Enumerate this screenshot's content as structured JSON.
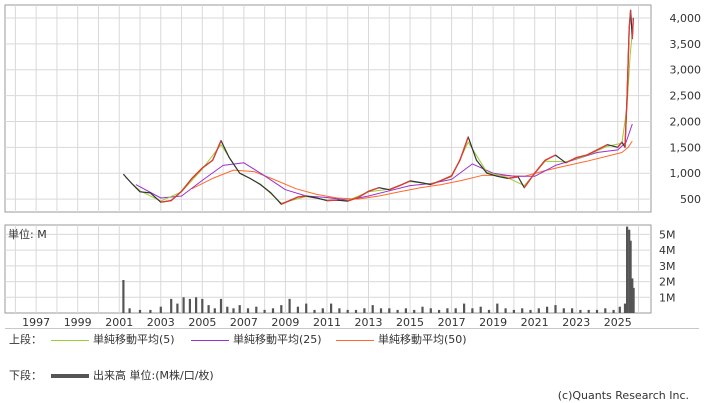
{
  "legend": {
    "upper_label": "上段：",
    "lower_label": "下段：",
    "ma5": "単純移動平均(5)",
    "ma25": "単純移動平均(25)",
    "ma50": "単純移動平均(50)",
    "volume": "出来高 単位:(M株/口/枚)"
  },
  "volume_unit_label": "単位: M",
  "credit": "(c)Quants Research Inc.",
  "colors": {
    "price_up": "#e53935",
    "price_down": "#333333",
    "ma5": "#9acd32",
    "ma25": "#9932cc",
    "ma50": "#ff6a2a",
    "volume": "#555555",
    "grid": "#d9d9d9"
  },
  "chart_data": [
    {
      "type": "line",
      "name": "price",
      "x_ticks": [
        "1997",
        "1999",
        "2001",
        "2003",
        "2005",
        "2007",
        "2009",
        "2011",
        "2013",
        "2015",
        "2017",
        "2019",
        "2021",
        "2023",
        "2025"
      ],
      "y_ticks": [
        "500",
        "1,000",
        "1,500",
        "2,000",
        "2,500",
        "3,000",
        "3,500",
        "4,000"
      ],
      "xlim": [
        1995.5,
        2026.6
      ],
      "ylim": [
        250,
        4250
      ],
      "series": [
        {
          "name": "price",
          "x": [
            2001.2,
            2001.6,
            2002.0,
            2002.5,
            2003.0,
            2003.5,
            2004.0,
            2004.5,
            2005.0,
            2005.5,
            2005.9,
            2006.3,
            2006.8,
            2007.3,
            2007.8,
            2008.3,
            2008.8,
            2009.2,
            2009.6,
            2010.0,
            2010.5,
            2011.0,
            2011.5,
            2012.0,
            2012.5,
            2013.0,
            2013.5,
            2014.0,
            2014.5,
            2015.0,
            2015.5,
            2016.0,
            2016.5,
            2017.0,
            2017.4,
            2017.8,
            2018.2,
            2018.7,
            2019.2,
            2019.7,
            2020.2,
            2020.5,
            2021.0,
            2021.5,
            2022.0,
            2022.5,
            2023.0,
            2023.5,
            2024.0,
            2024.5,
            2025.0,
            2025.2,
            2025.35,
            2025.45,
            2025.55,
            2025.62,
            2025.7,
            2025.75
          ],
          "y": [
            980,
            800,
            640,
            620,
            440,
            470,
            650,
            900,
            1100,
            1250,
            1630,
            1300,
            1000,
            900,
            780,
            620,
            400,
            470,
            540,
            560,
            520,
            470,
            480,
            460,
            530,
            650,
            720,
            680,
            760,
            850,
            820,
            780,
            860,
            950,
            1250,
            1700,
            1250,
            1000,
            940,
            900,
            930,
            720,
            1000,
            1250,
            1350,
            1200,
            1300,
            1350,
            1450,
            1550,
            1500,
            1600,
            1500,
            2500,
            3800,
            4150,
            3600,
            4000
          ]
        },
        {
          "name": "単純移動平均(5)",
          "x": [
            2001.3,
            2002.0,
            2003.0,
            2004.0,
            2005.0,
            2005.9,
            2006.8,
            2007.8,
            2008.8,
            2010.0,
            2011.0,
            2012.0,
            2013.0,
            2014.0,
            2015.0,
            2016.0,
            2017.0,
            2017.8,
            2018.7,
            2019.7,
            2020.5,
            2021.5,
            2022.5,
            2023.5,
            2024.5,
            2025.2,
            2025.45,
            2025.6,
            2025.7
          ],
          "y": [
            920,
            660,
            460,
            640,
            1080,
            1550,
            1000,
            790,
            420,
            550,
            480,
            470,
            640,
            690,
            840,
            790,
            930,
            1600,
            1020,
            910,
            760,
            1230,
            1220,
            1340,
            1520,
            1580,
            2300,
            3300,
            3700
          ]
        },
        {
          "name": "単純移動平均(25)",
          "x": [
            2001.8,
            2003.0,
            2004.0,
            2005.0,
            2006.0,
            2007.0,
            2008.0,
            2009.0,
            2010.0,
            2011.0,
            2012.0,
            2013.0,
            2014.0,
            2015.0,
            2016.0,
            2017.0,
            2018.0,
            2019.0,
            2020.0,
            2021.0,
            2022.0,
            2023.0,
            2024.0,
            2025.0,
            2025.4,
            2025.7
          ],
          "y": [
            780,
            520,
            560,
            860,
            1150,
            1200,
            950,
            680,
            560,
            530,
            480,
            560,
            660,
            760,
            800,
            880,
            1180,
            1000,
            940,
            940,
            1150,
            1270,
            1400,
            1450,
            1600,
            1950
          ]
        },
        {
          "name": "単純移動平均(50)",
          "x": [
            2004.5,
            2005.5,
            2006.5,
            2007.5,
            2008.5,
            2009.5,
            2010.5,
            2011.5,
            2012.5,
            2013.5,
            2014.5,
            2015.5,
            2016.5,
            2017.5,
            2018.5,
            2019.5,
            2020.5,
            2021.5,
            2022.5,
            2023.5,
            2024.5,
            2025.2,
            2025.5,
            2025.7
          ],
          "y": [
            700,
            900,
            1060,
            1030,
            870,
            700,
            590,
            520,
            500,
            560,
            640,
            720,
            780,
            860,
            960,
            950,
            940,
            1050,
            1140,
            1230,
            1330,
            1400,
            1500,
            1620
          ]
        }
      ]
    },
    {
      "type": "bar",
      "name": "出来高",
      "y_ticks": [
        "1M",
        "2M",
        "3M",
        "4M",
        "5M"
      ],
      "ylim": [
        0,
        5.6
      ],
      "x": [
        2001.2,
        2001.5,
        2002.0,
        2002.5,
        2003.0,
        2003.5,
        2003.8,
        2004.1,
        2004.4,
        2004.7,
        2005.0,
        2005.3,
        2005.6,
        2005.9,
        2006.2,
        2006.5,
        2006.8,
        2007.2,
        2007.6,
        2008.0,
        2008.4,
        2008.8,
        2009.2,
        2009.6,
        2010.0,
        2010.4,
        2010.8,
        2011.2,
        2011.6,
        2012.0,
        2012.4,
        2012.8,
        2013.2,
        2013.6,
        2014.0,
        2014.4,
        2014.8,
        2015.2,
        2015.6,
        2016.0,
        2016.4,
        2016.8,
        2017.2,
        2017.6,
        2018.0,
        2018.4,
        2018.8,
        2019.2,
        2019.6,
        2020.0,
        2020.4,
        2020.8,
        2021.2,
        2021.6,
        2022.0,
        2022.4,
        2022.8,
        2023.2,
        2023.6,
        2024.0,
        2024.4,
        2024.8,
        2025.1,
        2025.35,
        2025.45,
        2025.55,
        2025.62,
        2025.7,
        2025.76
      ],
      "values": [
        2.1,
        0.3,
        0.2,
        0.2,
        0.4,
        0.9,
        0.6,
        1.0,
        0.9,
        1.0,
        0.9,
        0.5,
        0.3,
        0.9,
        0.4,
        0.3,
        0.5,
        0.3,
        0.4,
        0.2,
        0.3,
        0.5,
        0.9,
        0.4,
        0.6,
        0.2,
        0.3,
        0.6,
        0.3,
        0.2,
        0.2,
        0.3,
        0.5,
        0.3,
        0.3,
        0.2,
        0.3,
        0.2,
        0.4,
        0.3,
        0.2,
        0.3,
        0.3,
        0.6,
        0.3,
        0.4,
        0.2,
        0.6,
        0.3,
        0.2,
        0.3,
        0.2,
        0.3,
        0.4,
        0.5,
        0.3,
        0.3,
        0.2,
        0.2,
        0.2,
        0.3,
        0.2,
        0.4,
        0.6,
        5.5,
        5.3,
        4.6,
        2.2,
        1.6
      ]
    }
  ]
}
